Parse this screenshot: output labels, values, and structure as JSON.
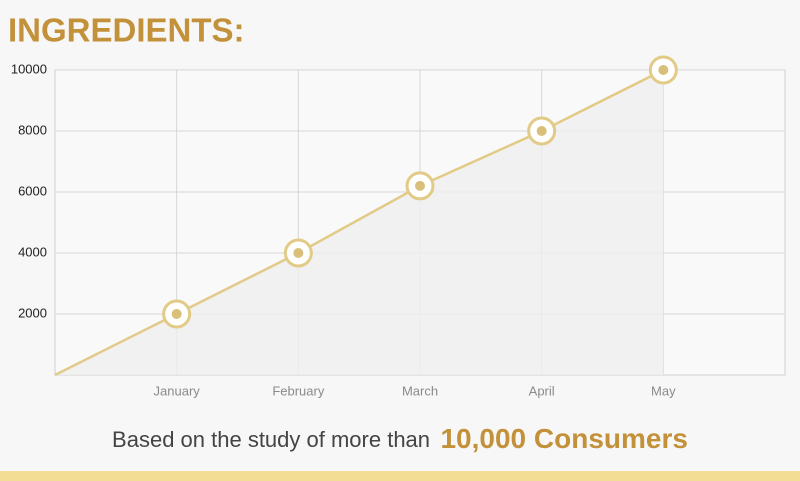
{
  "chart_data": {
    "type": "line",
    "title": "INGREDIENTS:",
    "categories": [
      null,
      "January",
      "February",
      "March",
      "April",
      "May"
    ],
    "values": [
      0,
      2000,
      4000,
      6200,
      8000,
      10000
    ],
    "color": "#e2cb87",
    "ylim": [
      0,
      10000
    ],
    "yticks": [
      2000,
      4000,
      6000,
      8000,
      10000
    ],
    "grid": true,
    "footnote": {
      "text": "Based on the study of more than",
      "highlight": "10,000 Consumers"
    }
  }
}
